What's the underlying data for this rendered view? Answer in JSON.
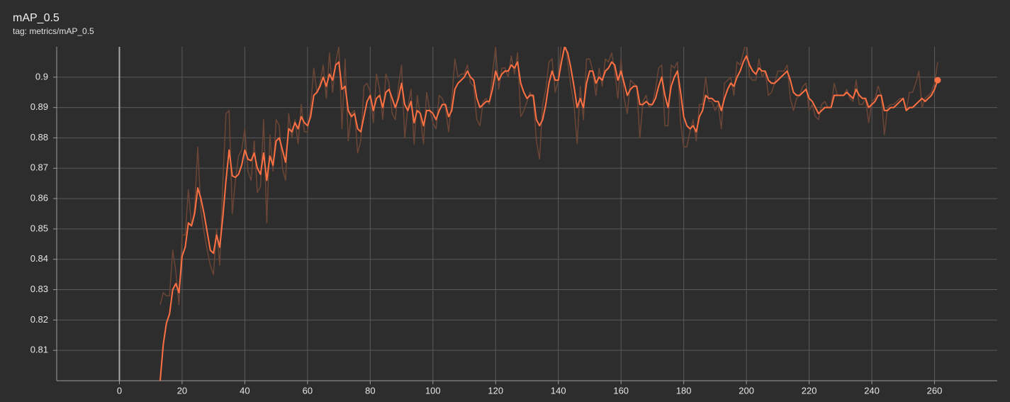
{
  "chart_data": {
    "type": "line",
    "title": "mAP_0.5",
    "subtitle": "tag: metrics/mAP_0.5",
    "xlim": [
      -20,
      280
    ],
    "ylim": [
      0.8,
      0.91
    ],
    "xticks": [
      0,
      20,
      40,
      60,
      80,
      100,
      120,
      140,
      160,
      180,
      200,
      220,
      240,
      260
    ],
    "yticks": [
      0.81,
      0.82,
      0.83,
      0.84,
      0.85,
      0.86,
      0.87,
      0.88,
      0.89,
      0.9
    ],
    "grid": true,
    "x": [
      13,
      14,
      15,
      16,
      17,
      18,
      19,
      20,
      21,
      22,
      23,
      24,
      25,
      26,
      27,
      28,
      29,
      30,
      31,
      32,
      33,
      34,
      35,
      36,
      37,
      38,
      39,
      40,
      41,
      42,
      43,
      44,
      45,
      46,
      47,
      48,
      49,
      50,
      51,
      52,
      53,
      54,
      55,
      56,
      57,
      58,
      59,
      60,
      61,
      62,
      63,
      64,
      65,
      66,
      67,
      68,
      69,
      70,
      71,
      72,
      73,
      74,
      75,
      76,
      77,
      78,
      79,
      80,
      81,
      82,
      83,
      84,
      85,
      86,
      87,
      88,
      89,
      90,
      91,
      92,
      93,
      94,
      95,
      96,
      97,
      98,
      99,
      100,
      101,
      102,
      103,
      104,
      105,
      106,
      107,
      108,
      109,
      110,
      111,
      112,
      113,
      114,
      115,
      116,
      117,
      118,
      119,
      120,
      121,
      122,
      123,
      124,
      125,
      126,
      127,
      128,
      129,
      130,
      131,
      132,
      133,
      134,
      135,
      136,
      137,
      138,
      139,
      140,
      141,
      142,
      143,
      144,
      145,
      146,
      147,
      148,
      149,
      150,
      151,
      152,
      153,
      154,
      155,
      156,
      157,
      158,
      159,
      160,
      161,
      162,
      163,
      164,
      165,
      166,
      167,
      168,
      169,
      170,
      171,
      172,
      173,
      174,
      175,
      176,
      177,
      178,
      179,
      180,
      181,
      182,
      183,
      184,
      185,
      186,
      187,
      188,
      189,
      190,
      191,
      192,
      193,
      194,
      195,
      196,
      197,
      198,
      199,
      200,
      201,
      202,
      203,
      204,
      205,
      206,
      207,
      208,
      209,
      210,
      211,
      212,
      213,
      214,
      215,
      216,
      217,
      218,
      219,
      220,
      221,
      222,
      223,
      224,
      225,
      226,
      227,
      228,
      229,
      230,
      231,
      232,
      233,
      234,
      235,
      236,
      237,
      238,
      239,
      240,
      241,
      242,
      243,
      244,
      245,
      246,
      247,
      248,
      249,
      250,
      251,
      252,
      253,
      254,
      255,
      256,
      257,
      258,
      259,
      260,
      261
    ],
    "series": [
      {
        "color": "#6b4536",
        "values": [
          0.825,
          0.829,
          0.828,
          0.828,
          0.843,
          0.836,
          0.825,
          0.848,
          0.848,
          0.863,
          0.851,
          0.857,
          0.877,
          0.856,
          0.849,
          0.843,
          0.838,
          0.835,
          0.85,
          0.838,
          0.866,
          0.888,
          0.889,
          0.855,
          0.866,
          0.874,
          0.876,
          0.883,
          0.869,
          0.866,
          0.879,
          0.862,
          0.864,
          0.886,
          0.852,
          0.881,
          0.869,
          0.886,
          0.884,
          0.87,
          0.866,
          0.888,
          0.88,
          0.886,
          0.878,
          0.891,
          0.882,
          0.882,
          0.89,
          0.903,
          0.895,
          0.898,
          0.904,
          0.893,
          0.908,
          0.895,
          0.905,
          0.91,
          0.883,
          0.906,
          0.879,
          0.888,
          0.889,
          0.875,
          0.879,
          0.897,
          0.898,
          0.895,
          0.885,
          0.901,
          0.896,
          0.886,
          0.901,
          0.898,
          0.888,
          0.886,
          0.897,
          0.904,
          0.88,
          0.89,
          0.896,
          0.878,
          0.894,
          0.887,
          0.878,
          0.895,
          0.889,
          0.885,
          0.883,
          0.894,
          0.893,
          0.89,
          0.882,
          0.892,
          0.906,
          0.9,
          0.901,
          0.901,
          0.904,
          0.898,
          0.897,
          0.886,
          0.884,
          0.892,
          0.893,
          0.891,
          0.901,
          0.91,
          0.896,
          0.903,
          0.903,
          0.9,
          0.907,
          0.901,
          0.908,
          0.887,
          0.889,
          0.892,
          0.895,
          0.893,
          0.879,
          0.873,
          0.891,
          0.896,
          0.905,
          0.906,
          0.895,
          0.899,
          0.912,
          0.914,
          0.905,
          0.897,
          0.891,
          0.878,
          0.897,
          0.886,
          0.906,
          0.906,
          0.902,
          0.894,
          0.903,
          0.897,
          0.906,
          0.905,
          0.908,
          0.902,
          0.893,
          0.906,
          0.893,
          0.888,
          0.899,
          0.898,
          0.897,
          0.88,
          0.892,
          0.894,
          0.89,
          0.891,
          0.896,
          0.903,
          0.904,
          0.884,
          0.884,
          0.904,
          0.903,
          0.905,
          0.885,
          0.877,
          0.877,
          0.882,
          0.886,
          0.879,
          0.891,
          0.891,
          0.9,
          0.892,
          0.892,
          0.889,
          0.891,
          0.883,
          0.898,
          0.899,
          0.9,
          0.894,
          0.905,
          0.904,
          0.908,
          0.912,
          0.9,
          0.899,
          0.899,
          0.906,
          0.9,
          0.902,
          0.894,
          0.895,
          0.898,
          0.902,
          0.902,
          0.902,
          0.904,
          0.893,
          0.889,
          0.893,
          0.894,
          0.897,
          0.898,
          0.889,
          0.891,
          0.887,
          0.886,
          0.891,
          0.892,
          0.89,
          0.89,
          0.898,
          0.894,
          0.894,
          0.894,
          0.896,
          0.893,
          0.892,
          0.899,
          0.891,
          0.891,
          0.893,
          0.885,
          0.892,
          0.893,
          0.897,
          0.894,
          0.881,
          0.89,
          0.891,
          0.891,
          0.892,
          0.893,
          0.893,
          0.889,
          0.895,
          0.895,
          0.898,
          0.902,
          0.89,
          0.893,
          0.894,
          0.895,
          0.898,
          0.905
        ]
      },
      {
        "color": "#ff7043",
        "values": [
          0.8,
          0.812,
          0.819,
          0.822,
          0.83,
          0.832,
          0.829,
          0.841,
          0.844,
          0.852,
          0.851,
          0.855,
          0.8635,
          0.86,
          0.855,
          0.849,
          0.843,
          0.842,
          0.848,
          0.844,
          0.854,
          0.866,
          0.876,
          0.8675,
          0.867,
          0.868,
          0.871,
          0.876,
          0.873,
          0.8725,
          0.875,
          0.87,
          0.868,
          0.875,
          0.866,
          0.874,
          0.871,
          0.879,
          0.88,
          0.876,
          0.872,
          0.883,
          0.882,
          0.885,
          0.883,
          0.887,
          0.885,
          0.884,
          0.887,
          0.894,
          0.895,
          0.897,
          0.9,
          0.897,
          0.901,
          0.899,
          0.904,
          0.905,
          0.896,
          0.897,
          0.889,
          0.887,
          0.888,
          0.883,
          0.882,
          0.887,
          0.892,
          0.894,
          0.889,
          0.893,
          0.894,
          0.89,
          0.895,
          0.896,
          0.893,
          0.89,
          0.893,
          0.898,
          0.891,
          0.889,
          0.892,
          0.885,
          0.889,
          0.888,
          0.884,
          0.889,
          0.889,
          0.888,
          0.886,
          0.889,
          0.891,
          0.891,
          0.887,
          0.889,
          0.896,
          0.898,
          0.899,
          0.9,
          0.902,
          0.9,
          0.899,
          0.893,
          0.89,
          0.891,
          0.892,
          0.892,
          0.896,
          0.902,
          0.899,
          0.901,
          0.902,
          0.902,
          0.904,
          0.903,
          0.905,
          0.898,
          0.895,
          0.893,
          0.894,
          0.894,
          0.886,
          0.884,
          0.886,
          0.891,
          0.898,
          0.902,
          0.899,
          0.899,
          0.905,
          0.91,
          0.908,
          0.903,
          0.897,
          0.89,
          0.893,
          0.89,
          0.898,
          0.902,
          0.902,
          0.898,
          0.9,
          0.899,
          0.902,
          0.903,
          0.905,
          0.904,
          0.899,
          0.902,
          0.898,
          0.894,
          0.896,
          0.897,
          0.897,
          0.891,
          0.891,
          0.892,
          0.891,
          0.891,
          0.893,
          0.897,
          0.9,
          0.894,
          0.89,
          0.897,
          0.9,
          0.902,
          0.895,
          0.887,
          0.884,
          0.883,
          0.884,
          0.882,
          0.887,
          0.889,
          0.894,
          0.893,
          0.893,
          0.892,
          0.892,
          0.889,
          0.893,
          0.896,
          0.898,
          0.897,
          0.9,
          0.902,
          0.905,
          0.907,
          0.904,
          0.902,
          0.901,
          0.903,
          0.902,
          0.902,
          0.899,
          0.898,
          0.898,
          0.899,
          0.9,
          0.901,
          0.902,
          0.899,
          0.895,
          0.894,
          0.894,
          0.895,
          0.896,
          0.893,
          0.892,
          0.89,
          0.888,
          0.889,
          0.89,
          0.89,
          0.89,
          0.894,
          0.894,
          0.894,
          0.894,
          0.895,
          0.894,
          0.893,
          0.896,
          0.894,
          0.893,
          0.893,
          0.89,
          0.891,
          0.892,
          0.894,
          0.894,
          0.889,
          0.889,
          0.89,
          0.89,
          0.891,
          0.892,
          0.893,
          0.889,
          0.89,
          0.89,
          0.891,
          0.892,
          0.893,
          0.892,
          0.893,
          0.894,
          0.896,
          0.899
        ]
      }
    ]
  }
}
